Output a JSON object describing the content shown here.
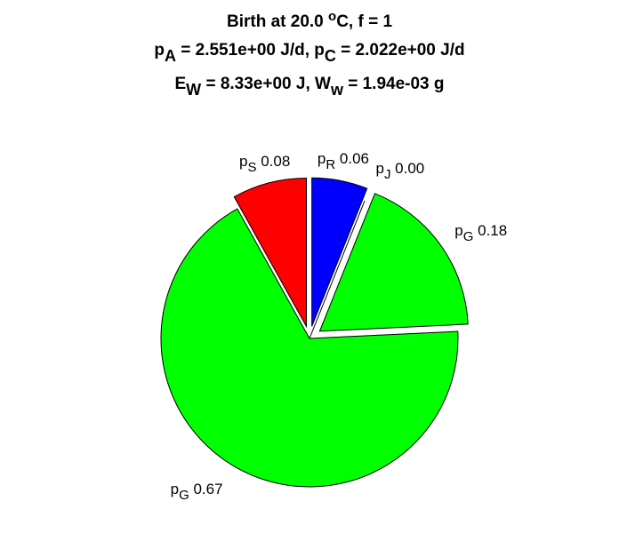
{
  "chart_data": {
    "type": "pie",
    "title": [
      [
        {
          "text": "Birth at 20.0 "
        },
        {
          "text": "o",
          "shift": "sup"
        },
        {
          "text": "C, f = 1"
        }
      ],
      [
        {
          "text": "p"
        },
        {
          "text": "A",
          "shift": "sub"
        },
        {
          "text": " = 2.551e+00 J/d, p"
        },
        {
          "text": "C",
          "shift": "sub"
        },
        {
          "text": " = 2.022e+00 J/d"
        }
      ],
      [
        {
          "text": "E"
        },
        {
          "text": "W",
          "shift": "sub"
        },
        {
          "text": " = 8.33e+00 J, W"
        },
        {
          "text": "w",
          "shift": "sub"
        },
        {
          "text": " = 1.94e-03 g"
        }
      ]
    ],
    "categories": [
      {
        "text": "p",
        "sub": "R"
      },
      {
        "text": "p",
        "sub": "J"
      },
      {
        "text": "p",
        "sub": "G"
      },
      {
        "text": "p",
        "sub": "G"
      },
      {
        "text": "p",
        "sub": "S"
      }
    ],
    "values": [
      0.06,
      0,
      0.18,
      0.67,
      0.08
    ],
    "value_labels": [
      "0.06",
      "0.00",
      "0.18",
      "0.67",
      "0.08"
    ],
    "colors": [
      "#0000ff",
      "#ffff00",
      "#00ff00",
      "#00ff00",
      "#ff0000"
    ],
    "explode": [
      true,
      false,
      true,
      false,
      true
    ]
  }
}
